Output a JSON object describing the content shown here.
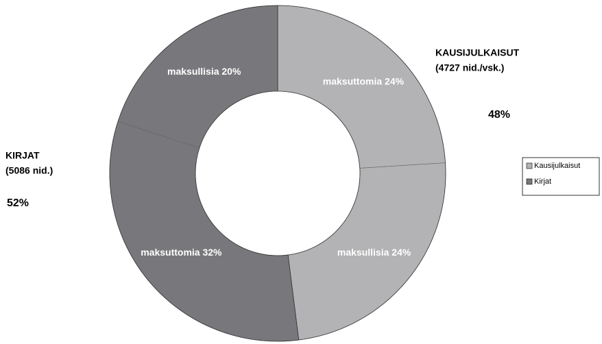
{
  "chart_data": {
    "type": "donut",
    "series": [
      {
        "name": "Kausijulkaisut",
        "color": "#b3b3b5",
        "label_lines": [
          "KAUSIJULKAISUT",
          "(4727 nid./vsk.)"
        ],
        "value": 48,
        "value_label": "48%",
        "segments": {
          "values": [
            24,
            24
          ],
          "value_labels": [
            "maksuttomia 24%",
            "maksullisia 24%"
          ]
        }
      },
      {
        "name": "Kirjat",
        "color": "#78787c",
        "label_lines": [
          "KIRJAT",
          "(5086 nid.)"
        ],
        "value": 52,
        "value_label": "52%",
        "segments": {
          "values": [
            32,
            20
          ],
          "value_labels": [
            "maksuttomia 32%",
            "maksullisia 20%"
          ]
        }
      }
    ],
    "legend": "right"
  }
}
